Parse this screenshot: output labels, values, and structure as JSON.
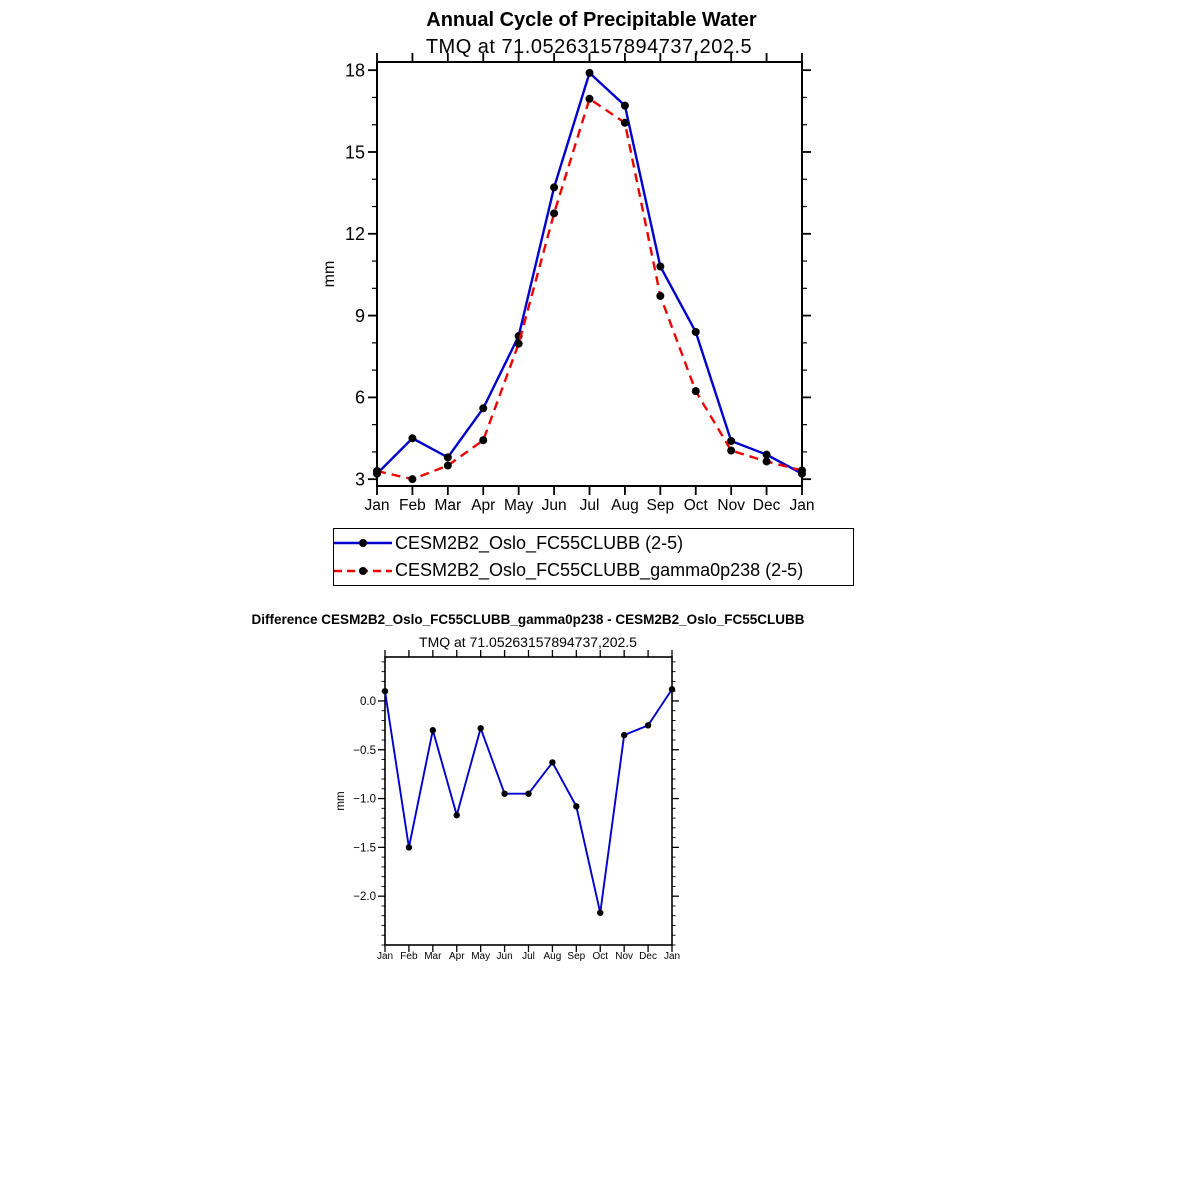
{
  "figure": {
    "background": "#ffffff",
    "frame_color": "#000000"
  },
  "chart_data": [
    {
      "type": "line",
      "title": "Annual Cycle of Precipitable Water",
      "subtitle": "TMQ at 71.05263157894737,202.5",
      "ylabel": "mm",
      "xlabel": "",
      "categories": [
        "Jan",
        "Feb",
        "Mar",
        "Apr",
        "May",
        "Jun",
        "Jul",
        "Aug",
        "Sep",
        "Oct",
        "Nov",
        "Dec",
        "Jan"
      ],
      "yticks": [
        3,
        6,
        9,
        12,
        15,
        18
      ],
      "yticklabels": [
        "3",
        "6",
        "9",
        "12",
        "15",
        "18"
      ],
      "yminor_step": 1,
      "ylim": [
        2.75,
        18.3
      ],
      "grid": false,
      "legend_position": "below-left-boxed",
      "series": [
        {
          "name": "CESM2B2_Oslo_FC55CLUBB (2-5)",
          "color": "#0000cc",
          "line_style": "solid",
          "marker": "filled-circle",
          "marker_color": "#000000",
          "values": [
            3.2,
            4.5,
            3.8,
            5.6,
            8.25,
            13.7,
            17.9,
            16.7,
            10.8,
            8.4,
            4.4,
            3.9,
            3.2
          ]
        },
        {
          "name": "CESM2B2_Oslo_FC55CLUBB_gamma0p238 (2-5)",
          "color": "#ee0000",
          "line_style": "dashed",
          "marker": "filled-circle",
          "marker_color": "#000000",
          "values": [
            3.3,
            3.0,
            3.5,
            4.43,
            7.97,
            12.75,
            16.95,
            16.07,
            9.72,
            6.23,
            4.05,
            3.65,
            3.32
          ]
        }
      ]
    },
    {
      "type": "line",
      "title": "Difference CESM2B2_Oslo_FC55CLUBB_gamma0p238 - CESM2B2_Oslo_FC55CLUBB",
      "subtitle": "TMQ at 71.05263157894737,202.5",
      "ylabel": "mm",
      "xlabel": "",
      "categories": [
        "Jan",
        "Feb",
        "Mar",
        "Apr",
        "May",
        "Jun",
        "Jul",
        "Aug",
        "Sep",
        "Oct",
        "Nov",
        "Dec",
        "Jan"
      ],
      "yticks": [
        0.0,
        -0.5,
        -1.0,
        -1.5,
        -2.0
      ],
      "yticklabels": [
        "0.0",
        "−0.5",
        "−1.0",
        "−1.5",
        "−2.0"
      ],
      "yminor_step": 0.1,
      "ylim": [
        -2.5,
        0.45
      ],
      "grid": false,
      "legend_position": "none",
      "series": [
        {
          "name": "difference",
          "color": "#0000cc",
          "line_style": "solid",
          "marker": "filled-circle",
          "marker_color": "#000000",
          "values": [
            0.1,
            -1.5,
            -0.3,
            -1.17,
            -0.28,
            -0.95,
            -0.95,
            -0.63,
            -1.08,
            -2.17,
            -0.35,
            -0.25,
            0.12
          ]
        }
      ]
    }
  ]
}
